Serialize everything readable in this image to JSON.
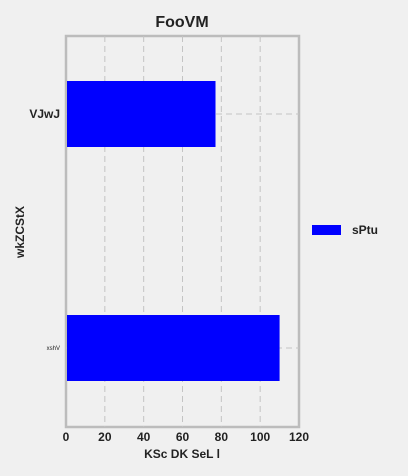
{
  "chart_data": {
    "type": "bar",
    "orientation": "horizontal",
    "title": "FooVM",
    "xlabel": "KSc DK SeL l",
    "ylabel": "wkZCStX",
    "categories": [
      "VJwJ",
      "xshV"
    ],
    "series": [
      {
        "name": "sPtu",
        "values": [
          77,
          110
        ],
        "color": "#0000ff"
      }
    ],
    "xlim": [
      0,
      120
    ],
    "xticks": [
      0,
      20,
      40,
      60,
      80,
      100,
      120
    ],
    "grid": true,
    "legend_position": "right"
  }
}
